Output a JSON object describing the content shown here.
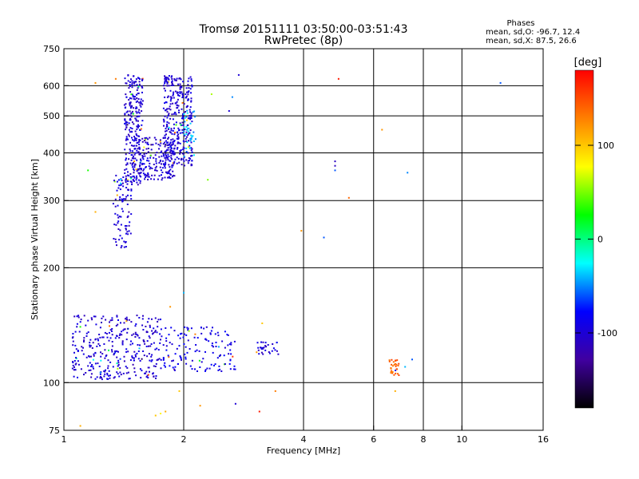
{
  "chart_data": {
    "type": "scatter",
    "title": "Tromsø 20151111 03:50:00-03:51:43",
    "subtitle": "RwPretec (8p)",
    "xlabel": "Frequency [MHz]",
    "ylabel": "Stationary phase Virtual Height [km]",
    "x_scale": "log",
    "y_scale": "log",
    "xlim": [
      1,
      16
    ],
    "ylim": [
      75,
      750
    ],
    "x_ticks": [
      1,
      2,
      4,
      6,
      8,
      10,
      16
    ],
    "x_tick_labels": [
      "1",
      "2",
      "4",
      "6",
      "8",
      "10",
      "16"
    ],
    "y_ticks": [
      75,
      100,
      200,
      300,
      400,
      500,
      600,
      750
    ],
    "y_tick_labels": [
      "75",
      "100",
      "200",
      "300",
      "400",
      "500",
      "600",
      "750"
    ],
    "grid": true,
    "phases_legend": {
      "heading": "Phases",
      "o_line": "mean, sd,O: -96.7, 12.4",
      "x_line": "mean, sd,X:  87.5, 26.6"
    },
    "colorbar": {
      "unit": "[deg]",
      "ticks": [
        100,
        0,
        -100
      ],
      "tick_labels": [
        "100",
        "0",
        "-100"
      ],
      "range": [
        -180,
        180
      ],
      "colors_top_to_bottom": [
        "#ff0000",
        "#ff8000",
        "#ffff00",
        "#00ff00",
        "#00ffff",
        "#0000ff",
        "#4000a0",
        "#000000"
      ]
    },
    "clusters": [
      {
        "name": "F-trace lower",
        "x_range": [
          1.33,
          1.48
        ],
        "y_range": [
          225,
          350
        ],
        "count": 90,
        "phase": -100
      },
      {
        "name": "F-trace left branch",
        "x_range": [
          1.42,
          1.58
        ],
        "y_range": [
          330,
          640
        ],
        "count": 260,
        "phase": -100
      },
      {
        "name": "F-trace middle",
        "x_range": [
          1.5,
          1.9
        ],
        "y_range": [
          340,
          440
        ],
        "count": 200,
        "phase": -100
      },
      {
        "name": "F-trace right branch",
        "x_range": [
          1.78,
          2.1
        ],
        "y_range": [
          370,
          640
        ],
        "count": 330,
        "phase": -100
      },
      {
        "name": "F-trace cyan edge",
        "x_range": [
          2.0,
          2.15
        ],
        "y_range": [
          380,
          520
        ],
        "count": 35,
        "phase": -40
      },
      {
        "name": "E-echo cluster",
        "x_range": [
          1.05,
          1.75
        ],
        "y_range": [
          102,
          150
        ],
        "count": 340,
        "phase": -100
      },
      {
        "name": "E-echo right",
        "x_range": [
          1.75,
          2.7
        ],
        "y_range": [
          107,
          140
        ],
        "count": 140,
        "phase": -90
      },
      {
        "name": "E-echo far right",
        "x_range": [
          3.0,
          3.5
        ],
        "y_range": [
          118,
          128
        ],
        "count": 30,
        "phase": -100
      },
      {
        "name": "Es 6.7 MHz",
        "x_range": [
          6.55,
          6.95
        ],
        "y_range": [
          103,
          115
        ],
        "count": 30,
        "phase": 140
      }
    ],
    "scattered_points": [
      {
        "x": 1.2,
        "y": 610,
        "phase": 120
      },
      {
        "x": 1.35,
        "y": 625,
        "phase": 130
      },
      {
        "x": 4.9,
        "y": 625,
        "phase": 170
      },
      {
        "x": 12.5,
        "y": 610,
        "phase": -60
      },
      {
        "x": 1.15,
        "y": 360,
        "phase": 30
      },
      {
        "x": 1.2,
        "y": 280,
        "phase": 110
      },
      {
        "x": 4.8,
        "y": 380,
        "phase": -110
      },
      {
        "x": 4.8,
        "y": 370,
        "phase": -110
      },
      {
        "x": 4.8,
        "y": 360,
        "phase": -60
      },
      {
        "x": 5.2,
        "y": 305,
        "phase": 140
      },
      {
        "x": 7.3,
        "y": 355,
        "phase": -50
      },
      {
        "x": 6.3,
        "y": 460,
        "phase": 120
      },
      {
        "x": 3.95,
        "y": 250,
        "phase": 120
      },
      {
        "x": 4.5,
        "y": 240,
        "phase": -60
      },
      {
        "x": 2.75,
        "y": 640,
        "phase": -100
      },
      {
        "x": 2.65,
        "y": 560,
        "phase": -50
      },
      {
        "x": 2.6,
        "y": 515,
        "phase": -100
      },
      {
        "x": 2.35,
        "y": 570,
        "phase": 60
      },
      {
        "x": 2.3,
        "y": 340,
        "phase": 50
      },
      {
        "x": 6.8,
        "y": 95,
        "phase": 110
      },
      {
        "x": 7.5,
        "y": 115,
        "phase": -60
      },
      {
        "x": 7.2,
        "y": 110,
        "phase": -40
      },
      {
        "x": 1.7,
        "y": 82,
        "phase": 100
      },
      {
        "x": 1.75,
        "y": 83,
        "phase": 80
      },
      {
        "x": 1.8,
        "y": 84,
        "phase": 110
      },
      {
        "x": 1.1,
        "y": 77,
        "phase": 110
      },
      {
        "x": 3.1,
        "y": 84,
        "phase": 170
      },
      {
        "x": 2.2,
        "y": 87,
        "phase": 120
      },
      {
        "x": 2.7,
        "y": 88,
        "phase": -100
      },
      {
        "x": 3.15,
        "y": 143,
        "phase": 100
      },
      {
        "x": 3.4,
        "y": 95,
        "phase": 130
      },
      {
        "x": 2.0,
        "y": 172,
        "phase": -40
      },
      {
        "x": 1.1,
        "y": 140,
        "phase": 30
      },
      {
        "x": 1.85,
        "y": 158,
        "phase": 120
      },
      {
        "x": 1.95,
        "y": 95,
        "phase": 100
      }
    ]
  }
}
